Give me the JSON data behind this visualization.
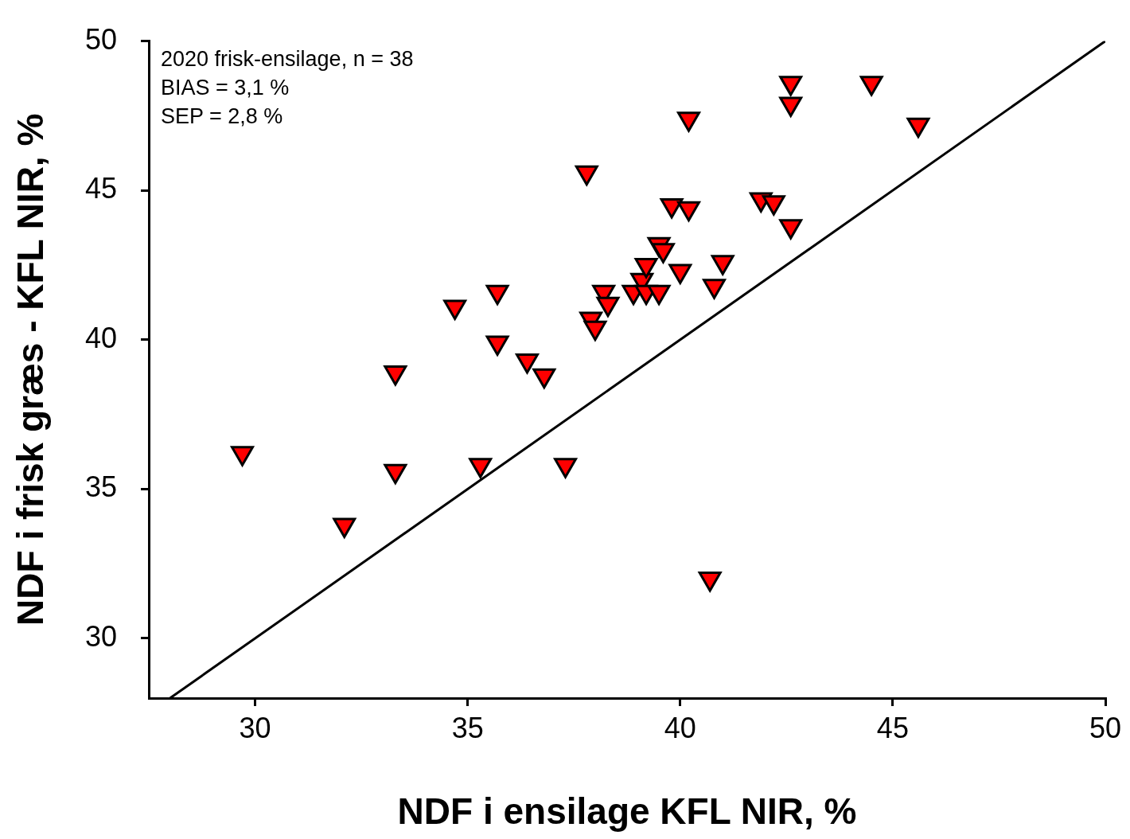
{
  "chart_data": {
    "type": "scatter",
    "xlabel": "NDF i ensilage KFL NIR, %",
    "ylabel": "NDF i frisk græs - KFL NIR, %",
    "annotations": [
      "2020 frisk-ensilage, n = 38",
      "BIAS = 3,1 %",
      "SEP = 2,8 %"
    ],
    "xlim": [
      27.5,
      50
    ],
    "xticks": [
      30,
      35,
      40,
      45,
      50
    ],
    "ylim": [
      28,
      50
    ],
    "yticks": [
      30,
      35,
      40,
      45,
      50
    ],
    "grid": false,
    "legend": false,
    "series": [
      {
        "type": "scatter",
        "color": "#ff0000",
        "marker": "triangle",
        "x": [
          29.7,
          32.1,
          33.3,
          33.3,
          34.7,
          35.3,
          35.7,
          35.7,
          36.4,
          36.8,
          37.3,
          37.8,
          37.9,
          38.0,
          38.2,
          38.3,
          38.9,
          39.1,
          39.2,
          39.2,
          39.5,
          39.5,
          39.6,
          39.8,
          40.0,
          40.2,
          40.2,
          40.7,
          40.8,
          41.0,
          41.9,
          42.2,
          42.6,
          42.6,
          42.6,
          44.5,
          45.6
        ],
        "values": [
          36.2,
          33.8,
          35.6,
          38.9,
          41.1,
          35.8,
          39.9,
          41.6,
          39.3,
          38.8,
          35.8,
          45.6,
          40.7,
          40.4,
          41.6,
          41.2,
          41.6,
          42.0,
          41.6,
          42.5,
          41.6,
          43.2,
          43.0,
          44.5,
          42.3,
          44.4,
          47.4,
          32.0,
          41.8,
          42.6,
          44.7,
          44.6,
          43.8,
          47.9,
          48.6,
          48.6,
          47.2
        ]
      },
      {
        "type": "line",
        "color": "#000000",
        "marker": "none",
        "line_style": "solid",
        "x": [
          28,
          50
        ],
        "values": [
          28,
          50
        ]
      }
    ]
  }
}
